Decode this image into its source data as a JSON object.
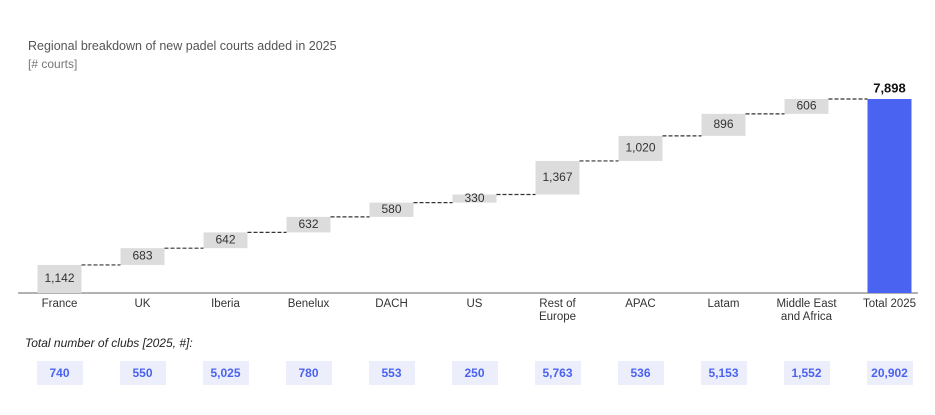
{
  "chart_data": {
    "type": "waterfall",
    "title": "Regional breakdown of new padel courts added in 2025",
    "subtitle": "[# courts]",
    "categories": [
      "France",
      "UK",
      "Iberia",
      "Benelux",
      "DACH",
      "US",
      "Rest of Europe",
      "APAC",
      "Latam",
      "Middle East and Africa",
      "Total 2025"
    ],
    "values": [
      1142,
      683,
      642,
      632,
      580,
      330,
      1367,
      1020,
      896,
      606,
      7898
    ],
    "value_labels": [
      "1,142",
      "683",
      "642",
      "632",
      "580",
      "330",
      "1,367",
      "1,020",
      "896",
      "606",
      "7,898"
    ],
    "color": "#dcdcdc",
    "total_color": "#4a63f0",
    "clubs": {
      "title": "Total number of clubs [2025, #]:",
      "values": [
        740,
        550,
        5025,
        780,
        553,
        250,
        5763,
        536,
        5153,
        1552,
        20902
      ],
      "value_labels": [
        "740",
        "550",
        "5,025",
        "780",
        "553",
        "250",
        "5,763",
        "536",
        "5,153",
        "1,552",
        "20,902"
      ]
    }
  }
}
